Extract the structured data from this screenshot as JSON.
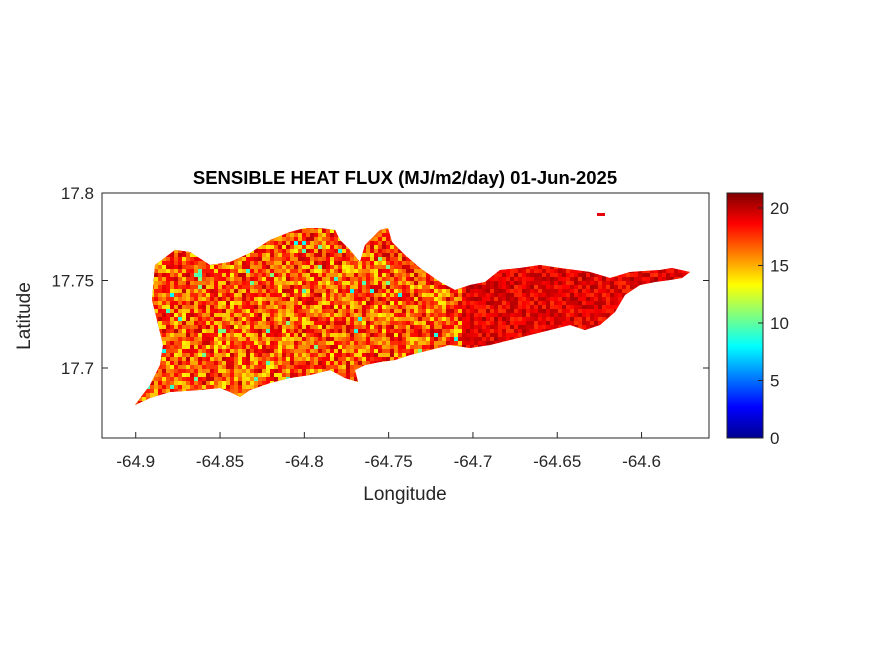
{
  "chart_data": {
    "type": "heatmap",
    "title": "SENSIBLE HEAT FLUX (MJ/m2/day) 01-Jun-2025",
    "xlabel": "Longitude",
    "ylabel": "Latitude",
    "xlim": [
      -64.92,
      -64.56
    ],
    "ylim": [
      17.66,
      17.8
    ],
    "xticks": [
      -64.9,
      -64.85,
      -64.8,
      -64.75,
      -64.7,
      -64.65,
      -64.6
    ],
    "xtick_labels": [
      "-64.9",
      "-64.85",
      "-64.8",
      "-64.75",
      "-64.7",
      "-64.65",
      "-64.6"
    ],
    "yticks": [
      17.7,
      17.75,
      17.8
    ],
    "ytick_labels": [
      "17.7",
      "17.75",
      "17.8"
    ],
    "colormap": "jet",
    "colorbar": {
      "clim": [
        0,
        21.3
      ],
      "ticks": [
        0,
        5,
        10,
        15,
        20
      ],
      "tick_labels": [
        "0",
        "5",
        "10",
        "15",
        "20"
      ],
      "placement": "right"
    },
    "grid": false,
    "value_range_observed": [
      8,
      21
    ]
  }
}
